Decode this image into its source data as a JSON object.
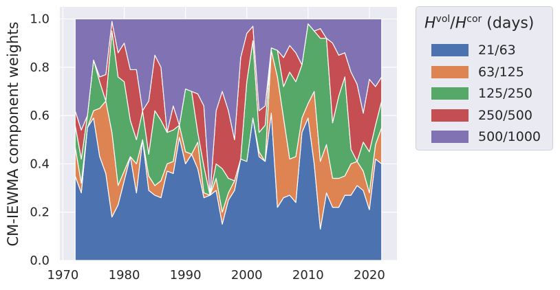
{
  "chart_data": {
    "type": "area",
    "stacked": true,
    "ylabel": "CM-IEWMA component weights",
    "xlabel": "",
    "xlim": [
      1969.5,
      2024.5
    ],
    "ylim": [
      0,
      1.05
    ],
    "xticks": [
      1970,
      1980,
      1990,
      2000,
      2010,
      2020
    ],
    "yticks": [
      0.0,
      0.2,
      0.4,
      0.6,
      0.8,
      1.0
    ],
    "ytick_labels": [
      "0.0",
      "0.2",
      "0.4",
      "0.6",
      "0.8",
      "1.0"
    ],
    "grid": true,
    "legend_position": "outside-right-top",
    "legend_title": {
      "base_h": "H",
      "sup1": "vol",
      "slash": "/",
      "sup2": "cor",
      "unit": "(days)"
    },
    "x": [
      1972,
      1973,
      1974,
      1975,
      1976,
      1977,
      1978,
      1979,
      1980,
      1981,
      1982,
      1983,
      1984,
      1985,
      1986,
      1987,
      1988,
      1989,
      1990,
      1991,
      1992,
      1993,
      1994,
      1995,
      1996,
      1997,
      1998,
      1999,
      2000,
      2001,
      2002,
      2003,
      2004,
      2005,
      2006,
      2007,
      2008,
      2009,
      2010,
      2011,
      2012,
      2013,
      2014,
      2015,
      2016,
      2017,
      2018,
      2019,
      2020,
      2021,
      2022
    ],
    "series": [
      {
        "name": "21/63",
        "color": "#4c72b0",
        "values": [
          0.35,
          0.28,
          0.55,
          0.59,
          0.43,
          0.36,
          0.18,
          0.23,
          0.33,
          0.43,
          0.28,
          0.5,
          0.29,
          0.27,
          0.26,
          0.37,
          0.36,
          0.51,
          0.4,
          0.44,
          0.38,
          0.26,
          0.27,
          0.29,
          0.15,
          0.25,
          0.29,
          0.42,
          0.41,
          0.59,
          0.43,
          0.41,
          0.61,
          0.22,
          0.26,
          0.27,
          0.24,
          0.53,
          0.59,
          0.4,
          0.13,
          0.28,
          0.22,
          0.22,
          0.27,
          0.27,
          0.31,
          0.29,
          0.21,
          0.42,
          0.4
        ]
      },
      {
        "name": "63/125",
        "color": "#dd8452",
        "values": [
          0.12,
          0.04,
          0.0,
          0.03,
          0.2,
          0.3,
          0.35,
          0.08,
          0.04,
          0.0,
          0.12,
          0.0,
          0.06,
          0.04,
          0.07,
          0.03,
          0.05,
          0.05,
          0.05,
          0.0,
          0.11,
          0.02,
          0.0,
          0.05,
          0.05,
          0.03,
          0.04,
          0.0,
          0.0,
          0.0,
          0.02,
          0.0,
          0.26,
          0.54,
          0.33,
          0.15,
          0.19,
          0.06,
          0.06,
          0.3,
          0.28,
          0.2,
          0.12,
          0.12,
          0.08,
          0.13,
          0.1,
          0.08,
          0.07,
          0.06,
          0.15
        ]
      },
      {
        "name": "125/250",
        "color": "#55a868",
        "values": [
          0.09,
          0.1,
          0.05,
          0.21,
          0.11,
          0.0,
          0.42,
          0.45,
          0.37,
          0.15,
          0.1,
          0.12,
          0.09,
          0.31,
          0.25,
          0.13,
          0.13,
          0.0,
          0.26,
          0.26,
          0.04,
          0.11,
          0.0,
          0.06,
          0.18,
          0.06,
          0.0,
          0.0,
          0.33,
          0.32,
          0.08,
          0.15,
          0.01,
          0.11,
          0.13,
          0.36,
          0.31,
          0.22,
          0.33,
          0.25,
          0.51,
          0.44,
          0.23,
          0.34,
          0.41,
          0.06,
          0.0,
          0.12,
          0.17,
          0.08,
          0.11
        ]
      },
      {
        "name": "250/500",
        "color": "#c44e52",
        "values": [
          0.06,
          0.12,
          0.0,
          0.0,
          0.02,
          0.11,
          0.04,
          0.1,
          0.16,
          0.21,
          0.29,
          0.0,
          0.22,
          0.23,
          0.22,
          0.0,
          0.1,
          0.0,
          0.0,
          0.0,
          0.16,
          0.25,
          0.0,
          0.22,
          0.32,
          0.28,
          0.17,
          0.42,
          0.2,
          0.06,
          0.09,
          0.08,
          0.0,
          0.0,
          0.12,
          0.11,
          0.12,
          0.0,
          0.0,
          0.0,
          0.04,
          0.0,
          0.33,
          0.17,
          0.1,
          0.32,
          0.32,
          0.12,
          0.3,
          0.16,
          0.1
        ]
      },
      {
        "name": "500/1000",
        "color": "#8172b3",
        "values": [
          0.38,
          0.46,
          0.4,
          0.17,
          0.24,
          0.23,
          0.01,
          0.14,
          0.1,
          0.21,
          0.21,
          0.38,
          0.34,
          0.15,
          0.2,
          0.47,
          0.36,
          0.44,
          0.29,
          0.3,
          0.31,
          0.36,
          0.73,
          0.38,
          0.3,
          0.38,
          0.5,
          0.16,
          0.06,
          0.03,
          0.38,
          0.36,
          0.12,
          0.13,
          0.16,
          0.11,
          0.14,
          0.19,
          0.02,
          0.05,
          0.04,
          0.08,
          0.1,
          0.15,
          0.14,
          0.22,
          0.27,
          0.39,
          0.25,
          0.28,
          0.24
        ]
      }
    ]
  }
}
